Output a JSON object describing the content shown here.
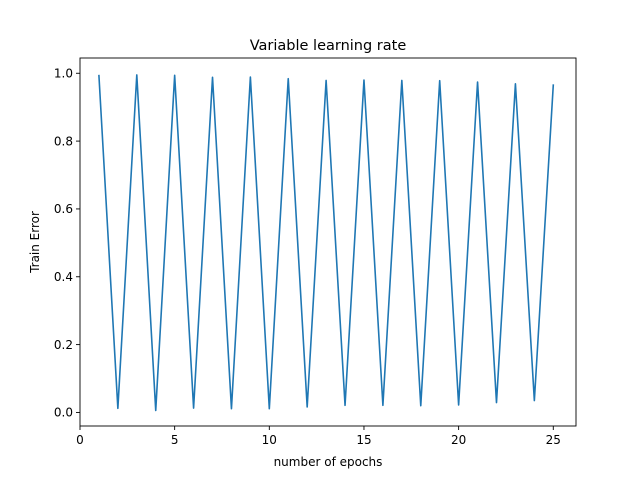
{
  "chart_data": {
    "type": "line",
    "title": "Variable learning rate",
    "xlabel": "number of epochs",
    "ylabel": "Train Error",
    "xlim": [
      0,
      26.2
    ],
    "ylim": [
      -0.04,
      1.045
    ],
    "xticks": [
      0,
      5,
      10,
      15,
      20,
      25
    ],
    "yticks": [
      0.0,
      0.2,
      0.4,
      0.6,
      0.8,
      1.0
    ],
    "xtick_labels": [
      "0",
      "5",
      "10",
      "15",
      "20",
      "25"
    ],
    "ytick_labels": [
      "0.0",
      "0.2",
      "0.4",
      "0.6",
      "0.8",
      "1.0"
    ],
    "grid": false,
    "legend": "none",
    "series": [
      {
        "color": "#1f77b4",
        "x": [
          1,
          2,
          3,
          4,
          5,
          6,
          7,
          8,
          9,
          10,
          11,
          12,
          13,
          14,
          15,
          16,
          17,
          18,
          19,
          20,
          21,
          22,
          23,
          24,
          25
        ],
        "y": [
          0.993,
          0.012,
          0.995,
          0.006,
          0.994,
          0.013,
          0.988,
          0.011,
          0.989,
          0.011,
          0.984,
          0.016,
          0.979,
          0.021,
          0.98,
          0.021,
          0.979,
          0.02,
          0.978,
          0.022,
          0.974,
          0.029,
          0.969,
          0.035,
          0.965
        ]
      }
    ]
  }
}
